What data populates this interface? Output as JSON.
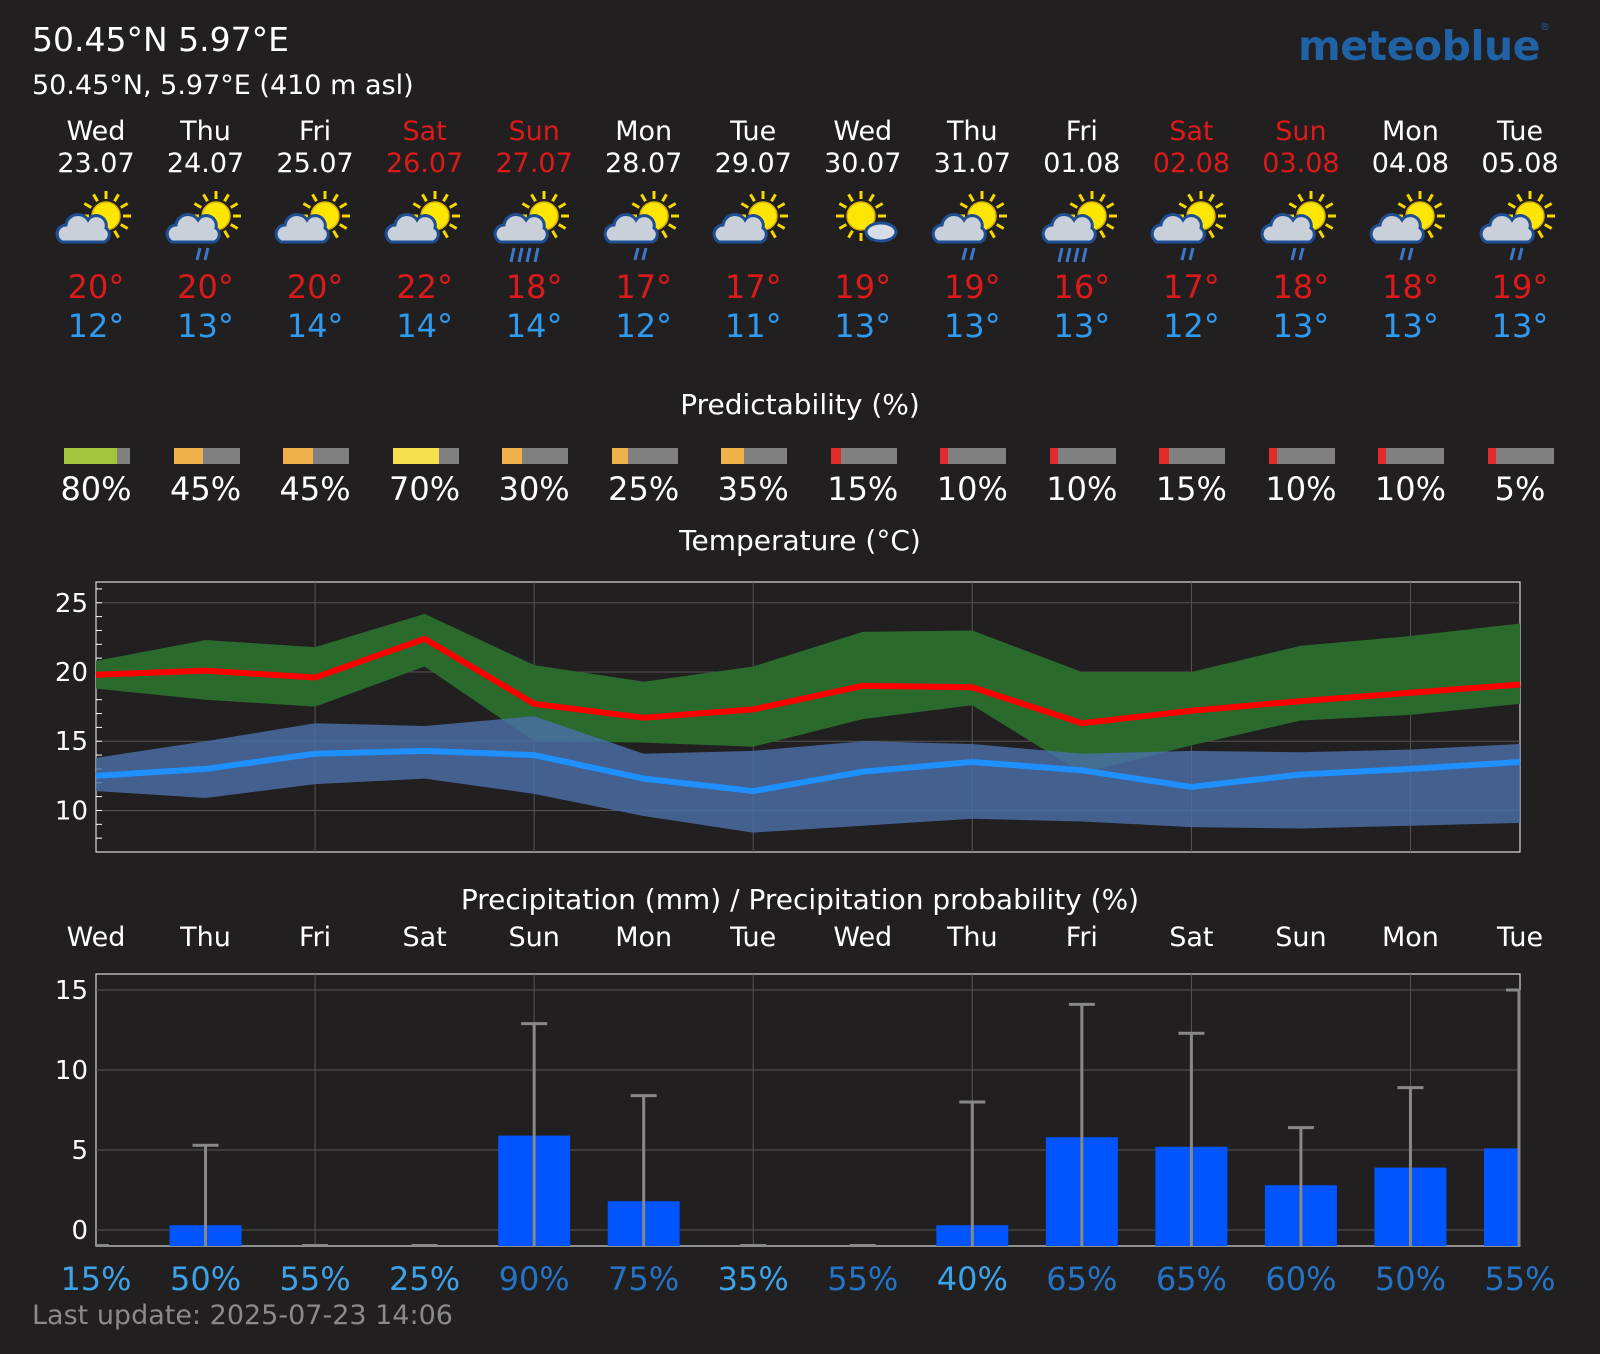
{
  "header": {
    "title": "50.45°N 5.97°E",
    "subtitle": "50.45°N, 5.97°E (410 m asl)",
    "logo": "meteoblue"
  },
  "days": [
    {
      "dow": "Wed",
      "date": "23.07",
      "weekend": false,
      "icon": "sun-cloud-icon",
      "max": "20°",
      "min": "12°",
      "pred": 80,
      "pred_label": "80%",
      "pred_color": "#a3c33a",
      "precip": 0.1,
      "precip_max": 0,
      "prob_label": "15%",
      "prob_color": "#3da3e8"
    },
    {
      "dow": "Thu",
      "date": "24.07",
      "weekend": false,
      "icon": "sun-cloud-rain-icon",
      "max": "20°",
      "min": "13°",
      "pred": 45,
      "pred_label": "45%",
      "pred_color": "#f0b04a",
      "precip": 0.3,
      "precip_max": 5.3,
      "prob_label": "50%",
      "prob_color": "#3da3e8"
    },
    {
      "dow": "Fri",
      "date": "25.07",
      "weekend": false,
      "icon": "sun-cloud-icon",
      "max": "20°",
      "min": "14°",
      "pred": 45,
      "pred_label": "45%",
      "pred_color": "#f0b04a",
      "precip": 0.1,
      "precip_max": 0,
      "prob_label": "55%",
      "prob_color": "#3da3e8"
    },
    {
      "dow": "Sat",
      "date": "26.07",
      "weekend": true,
      "icon": "sun-cloud-icon",
      "max": "22°",
      "min": "14°",
      "pred": 70,
      "pred_label": "70%",
      "pred_color": "#f5e04b",
      "precip": 0.1,
      "precip_max": 0,
      "prob_label": "25%",
      "prob_color": "#3da3e8"
    },
    {
      "dow": "Sun",
      "date": "27.07",
      "weekend": true,
      "icon": "sun-cloud-heavy-rain-icon",
      "max": "18°",
      "min": "14°",
      "pred": 30,
      "pred_label": "30%",
      "pred_color": "#f0b04a",
      "precip": 5.9,
      "precip_max": 12.9,
      "prob_label": "90%",
      "prob_color": "#2473c6"
    },
    {
      "dow": "Mon",
      "date": "28.07",
      "weekend": false,
      "icon": "sun-cloud-rain-icon",
      "max": "17°",
      "min": "12°",
      "pred": 25,
      "pred_label": "25%",
      "pred_color": "#f0b04a",
      "precip": 1.8,
      "precip_max": 8.4,
      "prob_label": "75%",
      "prob_color": "#2473c6"
    },
    {
      "dow": "Tue",
      "date": "29.07",
      "weekend": false,
      "icon": "sun-cloud-icon",
      "max": "17°",
      "min": "11°",
      "pred": 35,
      "pred_label": "35%",
      "pred_color": "#f0b04a",
      "precip": 0.1,
      "precip_max": 0,
      "prob_label": "35%",
      "prob_color": "#3da3e8"
    },
    {
      "dow": "Wed",
      "date": "30.07",
      "weekend": false,
      "icon": "sun-small-cloud-icon",
      "max": "19°",
      "min": "13°",
      "pred": 15,
      "pred_label": "15%",
      "pred_color": "#e32b2b",
      "precip": 0.1,
      "precip_max": 0,
      "prob_label": "55%",
      "prob_color": "#2473c6"
    },
    {
      "dow": "Thu",
      "date": "31.07",
      "weekend": false,
      "icon": "sun-cloud-rain-icon",
      "max": "19°",
      "min": "13°",
      "pred": 10,
      "pred_label": "10%",
      "pred_color": "#e32b2b",
      "precip": 0.3,
      "precip_max": 8.0,
      "prob_label": "40%",
      "prob_color": "#3da3e8"
    },
    {
      "dow": "Fri",
      "date": "01.08",
      "weekend": false,
      "icon": "sun-cloud-heavy-rain-icon",
      "max": "16°",
      "min": "13°",
      "pred": 10,
      "pred_label": "10%",
      "pred_color": "#e32b2b",
      "precip": 5.8,
      "precip_max": 14.1,
      "prob_label": "65%",
      "prob_color": "#2473c6"
    },
    {
      "dow": "Sat",
      "date": "02.08",
      "weekend": true,
      "icon": "sun-cloud-rain-icon",
      "max": "17°",
      "min": "12°",
      "pred": 15,
      "pred_label": "15%",
      "pred_color": "#e32b2b",
      "precip": 5.2,
      "precip_max": 12.3,
      "prob_label": "65%",
      "prob_color": "#2473c6"
    },
    {
      "dow": "Sun",
      "date": "03.08",
      "weekend": true,
      "icon": "sun-cloud-rain-icon",
      "max": "18°",
      "min": "13°",
      "pred": 10,
      "pred_label": "10%",
      "pred_color": "#e32b2b",
      "precip": 2.8,
      "precip_max": 6.4,
      "prob_label": "60%",
      "prob_color": "#2473c6"
    },
    {
      "dow": "Mon",
      "date": "04.08",
      "weekend": false,
      "icon": "sun-cloud-rain-icon",
      "max": "18°",
      "min": "13°",
      "pred": 10,
      "pred_label": "10%",
      "pred_color": "#e32b2b",
      "precip": 3.9,
      "precip_max": 8.9,
      "prob_label": "50%",
      "prob_color": "#2473c6"
    },
    {
      "dow": "Tue",
      "date": "05.08",
      "weekend": false,
      "icon": "sun-cloud-rain-icon",
      "max": "19°",
      "min": "13°",
      "pred": 5,
      "pred_label": "5%",
      "pred_color": "#e32b2b",
      "precip": 5.1,
      "precip_max": 15.0,
      "prob_label": "55%",
      "prob_color": "#2473c6"
    }
  ],
  "sections": {
    "predictability_title": "Predictability (%)",
    "temperature_title": "Temperature (°C)",
    "precip_title": "Precipitation (mm) / Precipitation probability (%)"
  },
  "colors": {
    "weekend": "#dd1a1a",
    "max_temp": "#dd1a1a",
    "min_temp": "#2f9bf0",
    "max_line": "#ff0000",
    "min_line": "#1e90ff",
    "max_band": "#2a6a2d",
    "min_band": "#4a6fa8",
    "precip_bar": "#0055ff",
    "whisker": "#888888"
  },
  "chart_data": [
    {
      "type": "area",
      "title": "Temperature (°C)",
      "x": [
        "23.07",
        "24.07",
        "25.07",
        "26.07",
        "27.07",
        "28.07",
        "29.07",
        "30.07",
        "31.07",
        "01.08",
        "02.08",
        "03.08",
        "04.08",
        "05.08"
      ],
      "ylim": [
        7,
        26.5
      ],
      "yticks": [
        10,
        15,
        20,
        25
      ],
      "grid": true,
      "series": [
        {
          "role": "max",
          "values": [
            19.8,
            20.1,
            19.6,
            22.4,
            17.7,
            16.7,
            17.3,
            19.0,
            18.9,
            16.3,
            17.2,
            17.9,
            18.5,
            19.1
          ]
        },
        {
          "role": "max_range_high",
          "values": [
            20.8,
            22.3,
            21.8,
            24.2,
            20.5,
            19.3,
            20.4,
            22.9,
            23.0,
            20.0,
            20.0,
            21.9,
            22.6,
            23.5
          ]
        },
        {
          "role": "max_range_low",
          "values": [
            18.8,
            18.0,
            17.5,
            20.4,
            15.0,
            14.9,
            14.6,
            16.6,
            17.6,
            12.7,
            14.7,
            16.5,
            16.9,
            17.7
          ]
        },
        {
          "role": "min",
          "values": [
            12.5,
            13.0,
            14.1,
            14.3,
            14.0,
            12.3,
            11.4,
            12.8,
            13.5,
            12.9,
            11.7,
            12.6,
            13.0,
            13.5
          ]
        },
        {
          "role": "min_range_high",
          "values": [
            13.8,
            15.0,
            16.3,
            16.1,
            16.8,
            14.1,
            14.3,
            15.0,
            14.8,
            14.1,
            14.3,
            14.2,
            14.4,
            14.8
          ]
        },
        {
          "role": "min_range_low",
          "values": [
            11.4,
            10.9,
            11.9,
            12.3,
            11.2,
            9.6,
            8.4,
            8.9,
            9.4,
            9.2,
            8.8,
            8.7,
            8.9,
            9.1
          ]
        }
      ]
    },
    {
      "type": "bar",
      "title": "Precipitation (mm) / Precipitation probability (%)",
      "categories": [
        "Wed",
        "Thu",
        "Fri",
        "Sat",
        "Sun",
        "Mon",
        "Tue",
        "Wed",
        "Thu",
        "Fri",
        "Sat",
        "Sun",
        "Mon",
        "Tue"
      ],
      "values": [
        0.1,
        0.3,
        0.1,
        0.1,
        5.9,
        1.8,
        0.1,
        0.1,
        0.3,
        5.8,
        5.2,
        2.8,
        3.9,
        5.1
      ],
      "error_high": [
        0,
        5.3,
        0,
        0,
        12.9,
        8.4,
        0,
        0,
        8.0,
        14.1,
        12.3,
        6.4,
        8.9,
        15.0
      ],
      "probability": [
        "15%",
        "50%",
        "55%",
        "25%",
        "90%",
        "75%",
        "35%",
        "55%",
        "40%",
        "65%",
        "65%",
        "60%",
        "50%",
        "55%"
      ],
      "ylim": [
        -1,
        16
      ],
      "yticks": [
        0,
        5,
        10,
        15
      ],
      "grid": true
    }
  ],
  "footer": {
    "last_update": "Last update: 2025-07-23 14:06"
  }
}
